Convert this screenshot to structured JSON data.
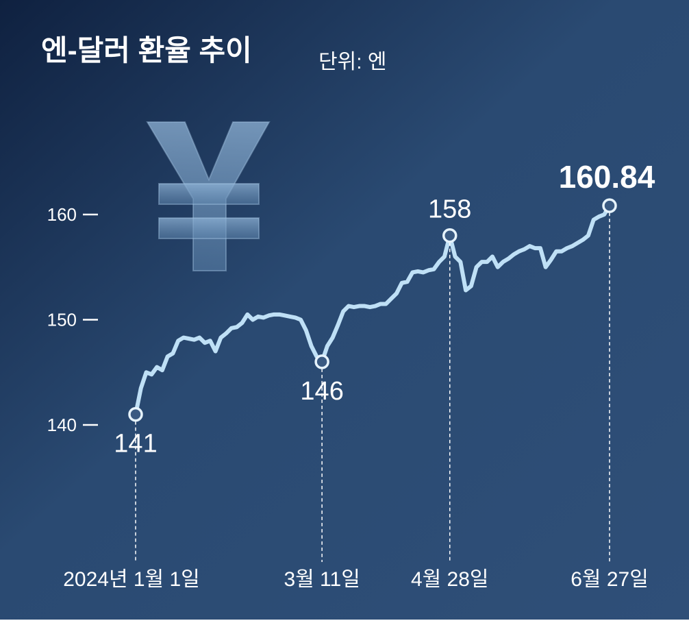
{
  "chart_data": {
    "type": "line",
    "title": "엔-달러 환율 추이",
    "subtitle": "단위: 엔",
    "categories": [
      "2024년 1월 1일",
      null,
      null,
      null,
      null,
      null,
      null,
      null,
      null,
      null,
      null,
      null,
      null,
      null,
      null,
      null,
      null,
      null,
      null,
      null,
      null,
      null,
      null,
      null,
      null,
      null,
      null,
      null,
      null,
      null,
      null,
      null,
      null,
      null,
      null,
      "3월 11일",
      null,
      null,
      null,
      null,
      null,
      null,
      null,
      null,
      null,
      null,
      null,
      null,
      null,
      null,
      null,
      null,
      null,
      null,
      null,
      null,
      null,
      null,
      null,
      "4월 28일",
      null,
      null,
      null,
      null,
      null,
      null,
      null,
      null,
      null,
      null,
      null,
      null,
      null,
      null,
      null,
      null,
      null,
      null,
      null,
      null,
      null,
      null,
      null,
      null,
      null,
      null,
      null,
      null,
      null,
      "6월 27일"
    ],
    "values": [
      141,
      143.5,
      145,
      144.8,
      145.5,
      145.2,
      146.5,
      146.8,
      148,
      148.3,
      148.2,
      148.1,
      148.3,
      147.8,
      148,
      147,
      148.3,
      148.7,
      149.2,
      149.3,
      149.7,
      150.5,
      150,
      150.3,
      150.2,
      150.4,
      150.5,
      150.5,
      150.4,
      150.3,
      150.2,
      150,
      149,
      147.5,
      146.5,
      146,
      147.5,
      148.3,
      149.5,
      150.8,
      151.3,
      151.2,
      151.3,
      151.3,
      151.2,
      151.3,
      151.5,
      151.5,
      152,
      152.5,
      153.5,
      153.6,
      154.5,
      154.6,
      154.5,
      154.7,
      154.8,
      155.5,
      156,
      158,
      156,
      155.5,
      152.8,
      153.2,
      155,
      155.5,
      155.5,
      156,
      155,
      155.5,
      155.8,
      156.2,
      156.5,
      156.7,
      157,
      156.8,
      156.8,
      155,
      155.7,
      156.5,
      156.5,
      156.8,
      157,
      157.3,
      157.6,
      158,
      159.5,
      159.8,
      160,
      160.84
    ],
    "color": "#bfe0f6",
    "ylim": [
      135,
      165
    ],
    "yticks": [
      140,
      150,
      160
    ]
  }
}
